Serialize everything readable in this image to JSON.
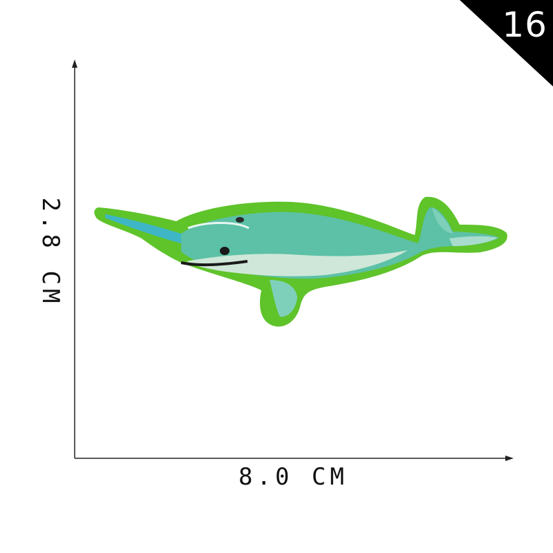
{
  "badge": {
    "number": "16",
    "color": "#000000"
  },
  "dimensions": {
    "width_label": "8.0 CM",
    "height_label": "2.8 CM"
  },
  "product": {
    "icon": "narwhal-patch-icon",
    "border_color": "#5fc32a",
    "body_color": "#5cc1a6",
    "belly_color": "#cfe7d8",
    "horn_color": "#3fb6c6"
  },
  "axis_color": "#222222"
}
